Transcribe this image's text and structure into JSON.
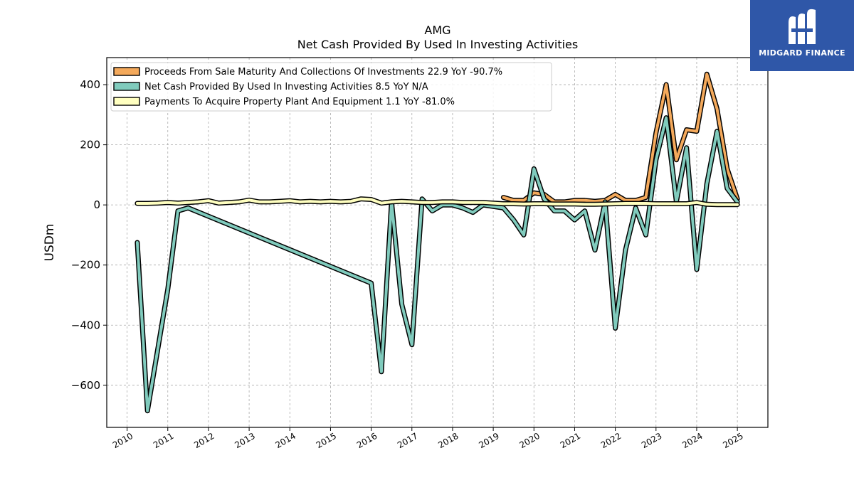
{
  "brand": {
    "name": "MIDGARD FINANCE",
    "logo_icon": "midgard-m-logo-icon",
    "background": "#2f57a8"
  },
  "chart_data": {
    "type": "line",
    "title": "AMG",
    "subtitle": "Net Cash Provided By Used In Investing Activities",
    "ylabel": "USDm",
    "xlabel": "",
    "ylim": [
      -740,
      490
    ],
    "xlim": [
      2009.5,
      2025.75
    ],
    "yticks": [
      400,
      200,
      0,
      -200,
      -400,
      -600
    ],
    "ytick_labels": [
      "400",
      "200",
      "0",
      "−200",
      "−400",
      "−600"
    ],
    "xticks": [
      2010,
      2011,
      2012,
      2013,
      2014,
      2015,
      2016,
      2017,
      2018,
      2019,
      2020,
      2021,
      2022,
      2023,
      2024,
      2025
    ],
    "xtick_labels": [
      "2010",
      "2011",
      "2012",
      "2013",
      "2014",
      "2015",
      "2016",
      "2017",
      "2018",
      "2019",
      "2020",
      "2021",
      "2022",
      "2023",
      "2024",
      "2025"
    ],
    "grid": true,
    "legend_position": "top-left",
    "series": [
      {
        "name": "Proceeds From Sale Maturity And Collections Of Investments",
        "legend_label": "Proceeds From Sale Maturity And Collections Of Investments  22.9 YoY -90.7%",
        "color": "#f4a95b",
        "points": [
          [
            2019.25,
            25
          ],
          [
            2019.5,
            15
          ],
          [
            2019.75,
            15
          ],
          [
            2020.0,
            40
          ],
          [
            2020.25,
            35
          ],
          [
            2020.5,
            10
          ],
          [
            2020.75,
            10
          ],
          [
            2021.0,
            15
          ],
          [
            2021.25,
            15
          ],
          [
            2021.5,
            12
          ],
          [
            2021.75,
            15
          ],
          [
            2022.0,
            35
          ],
          [
            2022.25,
            15
          ],
          [
            2022.5,
            15
          ],
          [
            2022.75,
            25
          ],
          [
            2023.0,
            240
          ],
          [
            2023.25,
            400
          ],
          [
            2023.5,
            150
          ],
          [
            2023.75,
            250
          ],
          [
            2024.0,
            245
          ],
          [
            2024.25,
            435
          ],
          [
            2024.5,
            320
          ],
          [
            2024.75,
            120
          ],
          [
            2025.0,
            20
          ]
        ]
      },
      {
        "name": "Net Cash Provided By Used In Investing Activities",
        "legend_label": "Net Cash Provided By Used In Investing Activities  8.5 YoY N/A",
        "color": "#80cbbd",
        "points": [
          [
            2010.25,
            -125
          ],
          [
            2010.5,
            -685
          ],
          [
            2011.0,
            -280
          ],
          [
            2011.25,
            -20
          ],
          [
            2011.5,
            -10
          ],
          [
            2016.0,
            -260
          ],
          [
            2016.25,
            -555
          ],
          [
            2016.5,
            10
          ],
          [
            2016.75,
            -330
          ],
          [
            2017.0,
            -465
          ],
          [
            2017.25,
            20
          ],
          [
            2017.5,
            -20
          ],
          [
            2017.75,
            0
          ],
          [
            2018.0,
            0
          ],
          [
            2018.25,
            -10
          ],
          [
            2018.5,
            -25
          ],
          [
            2018.75,
            0
          ],
          [
            2019.0,
            -5
          ],
          [
            2019.25,
            -10
          ],
          [
            2019.5,
            -50
          ],
          [
            2019.75,
            -100
          ],
          [
            2020.0,
            120
          ],
          [
            2020.25,
            20
          ],
          [
            2020.5,
            -20
          ],
          [
            2020.75,
            -20
          ],
          [
            2021.0,
            -50
          ],
          [
            2021.25,
            -20
          ],
          [
            2021.5,
            -150
          ],
          [
            2021.75,
            10
          ],
          [
            2022.0,
            -410
          ],
          [
            2022.25,
            -150
          ],
          [
            2022.5,
            -10
          ],
          [
            2022.75,
            -100
          ],
          [
            2023.0,
            150
          ],
          [
            2023.25,
            290
          ],
          [
            2023.5,
            10
          ],
          [
            2023.75,
            190
          ],
          [
            2024.0,
            -215
          ],
          [
            2024.25,
            70
          ],
          [
            2024.5,
            245
          ],
          [
            2024.75,
            55
          ],
          [
            2025.0,
            10
          ]
        ]
      },
      {
        "name": "Payments To Acquire Property Plant And Equipment",
        "legend_label": "Payments To Acquire Property Plant And Equipment  1.1 YoY -81.0%",
        "color": "#ffffc0",
        "points": [
          [
            2010.25,
            5
          ],
          [
            2010.5,
            5
          ],
          [
            2010.75,
            6
          ],
          [
            2011.0,
            8
          ],
          [
            2011.25,
            6
          ],
          [
            2011.5,
            8
          ],
          [
            2011.75,
            10
          ],
          [
            2012.0,
            14
          ],
          [
            2012.25,
            6
          ],
          [
            2012.5,
            8
          ],
          [
            2012.75,
            10
          ],
          [
            2013.0,
            16
          ],
          [
            2013.25,
            10
          ],
          [
            2013.5,
            10
          ],
          [
            2013.75,
            12
          ],
          [
            2014.0,
            14
          ],
          [
            2014.25,
            10
          ],
          [
            2014.5,
            12
          ],
          [
            2014.75,
            10
          ],
          [
            2015.0,
            12
          ],
          [
            2015.25,
            10
          ],
          [
            2015.5,
            12
          ],
          [
            2015.75,
            20
          ],
          [
            2016.0,
            18
          ],
          [
            2016.25,
            6
          ],
          [
            2016.5,
            10
          ],
          [
            2016.75,
            12
          ],
          [
            2017.0,
            10
          ],
          [
            2017.25,
            8
          ],
          [
            2017.5,
            8
          ],
          [
            2017.75,
            10
          ],
          [
            2018.0,
            10
          ],
          [
            2018.25,
            8
          ],
          [
            2018.5,
            8
          ],
          [
            2018.75,
            8
          ],
          [
            2019.0,
            6
          ],
          [
            2019.25,
            4
          ],
          [
            2019.5,
            4
          ],
          [
            2019.75,
            3
          ],
          [
            2020.0,
            4
          ],
          [
            2020.25,
            4
          ],
          [
            2020.5,
            3
          ],
          [
            2020.75,
            3
          ],
          [
            2021.0,
            3
          ],
          [
            2021.25,
            2
          ],
          [
            2021.5,
            2
          ],
          [
            2021.75,
            3
          ],
          [
            2022.0,
            4
          ],
          [
            2022.25,
            5
          ],
          [
            2022.5,
            5
          ],
          [
            2022.75,
            5
          ],
          [
            2023.0,
            4
          ],
          [
            2023.25,
            4
          ],
          [
            2023.5,
            4
          ],
          [
            2023.75,
            4
          ],
          [
            2024.0,
            8
          ],
          [
            2024.25,
            2
          ],
          [
            2024.5,
            1
          ],
          [
            2024.75,
            1
          ],
          [
            2025.0,
            1
          ]
        ]
      }
    ]
  }
}
